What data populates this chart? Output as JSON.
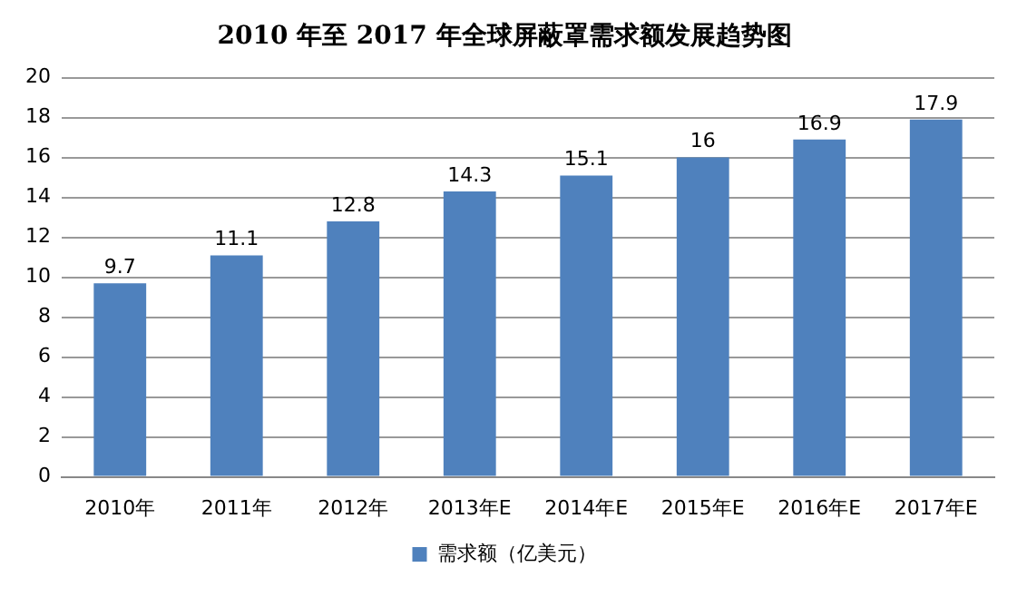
{
  "chart_data": {
    "type": "bar",
    "title": "2010 年至 2017 年全球屏蔽罩需求额发展趋势图",
    "categories": [
      "2010年",
      "2011年",
      "2012年",
      "2013年E",
      "2014年E",
      "2015年E",
      "2016年E",
      "2017年E"
    ],
    "series": [
      {
        "name": "需求额（亿美元）",
        "color": "#4f81bd",
        "values": [
          9.7,
          11.1,
          12.8,
          14.3,
          15.1,
          16,
          16.9,
          17.9
        ]
      }
    ],
    "ylim": [
      0,
      20
    ],
    "yticks": [
      0,
      2,
      4,
      6,
      8,
      10,
      12,
      14,
      16,
      18,
      20
    ],
    "grid": "y",
    "legend": "bottom",
    "data_labels": true
  }
}
